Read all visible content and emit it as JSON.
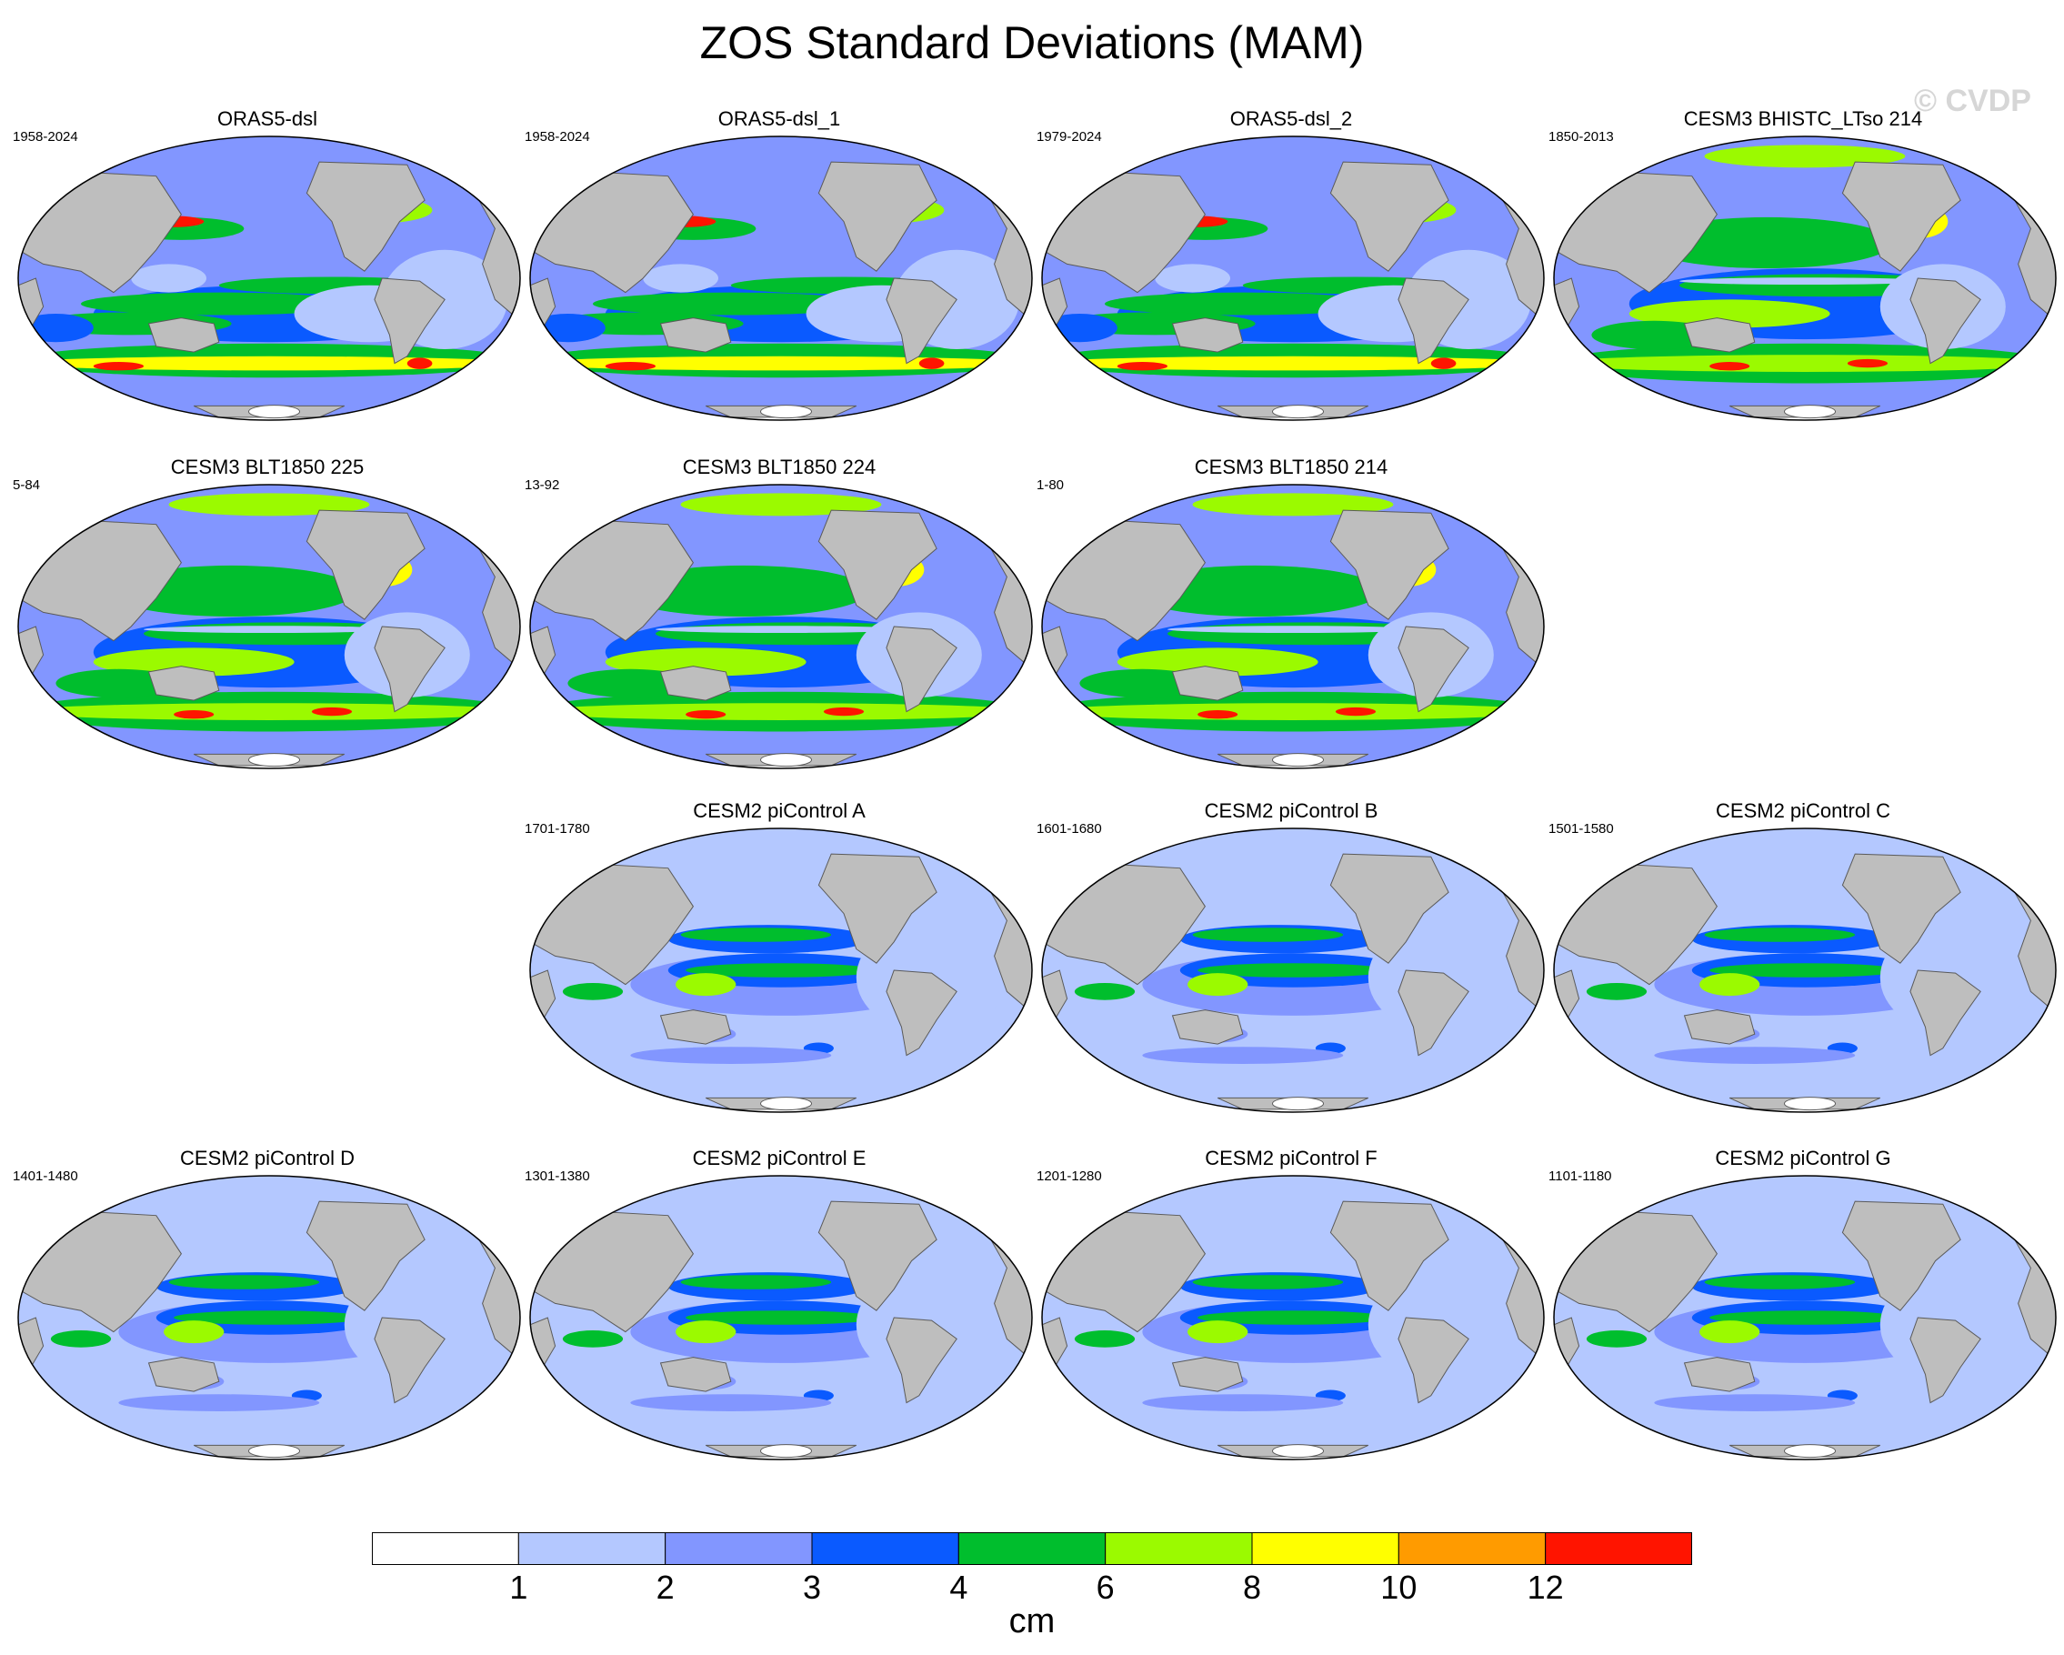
{
  "title": "ZOS Standard Deviations (MAM)",
  "watermark": "© CVDP",
  "panels": [
    {
      "title": "ORAS5-dsl",
      "period": "1958-2024",
      "style": "obs"
    },
    {
      "title": "ORAS5-dsl_1",
      "period": "1958-2024",
      "style": "obs"
    },
    {
      "title": "ORAS5-dsl_2",
      "period": "1979-2024",
      "style": "obs"
    },
    {
      "title": "CESM3 BHISTC_LTso 214",
      "period": "1850-2013",
      "style": "cesm3"
    },
    {
      "title": "CESM3 BLT1850 225",
      "period": "5-84",
      "style": "cesm3"
    },
    {
      "title": "CESM3 BLT1850 224",
      "period": "13-92",
      "style": "cesm3"
    },
    {
      "title": "CESM3 BLT1850 214",
      "period": "1-80",
      "style": "cesm3"
    },
    {
      "title": "CESM2 piControl A",
      "period": "1701-1780",
      "style": "cesm2"
    },
    {
      "title": "CESM2 piControl B",
      "period": "1601-1680",
      "style": "cesm2"
    },
    {
      "title": "CESM2 piControl C",
      "period": "1501-1580",
      "style": "cesm2"
    },
    {
      "title": "CESM2 piControl D",
      "period": "1401-1480",
      "style": "cesm2"
    },
    {
      "title": "CESM2 piControl E",
      "period": "1301-1380",
      "style": "cesm2"
    },
    {
      "title": "CESM2 piControl F",
      "period": "1201-1280",
      "style": "cesm2"
    },
    {
      "title": "CESM2 piControl G",
      "period": "1101-1180",
      "style": "cesm2"
    }
  ],
  "colorbar": {
    "units": "cm",
    "labels": [
      "1",
      "2",
      "3",
      "4",
      "6",
      "8",
      "10",
      "12"
    ],
    "colors": [
      "#ffffff",
      "#b4c8ff",
      "#8296ff",
      "#0a5aff",
      "#00be2d",
      "#9bfa00",
      "#ffff00",
      "#ff9b00",
      "#ff1400"
    ]
  },
  "map_colors": {
    "land": "#bebebe",
    "coast": "#5a5a5a"
  }
}
